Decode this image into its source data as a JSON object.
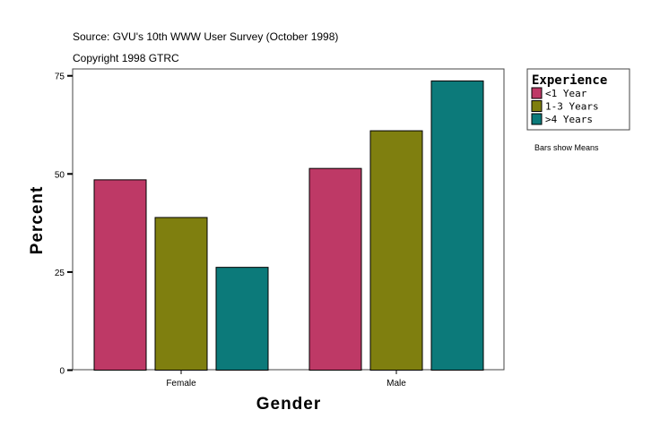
{
  "chart_data": {
    "type": "bar",
    "subtitle_lines": [
      "Source: GVU's 10th WWW User Survey (October 1998)",
      "Copyright 1998 GTRC"
    ],
    "xlabel": "Gender",
    "ylabel": "Percent",
    "categories": [
      "Female",
      "Male"
    ],
    "ylim": [
      0,
      75
    ],
    "yticks": [
      0,
      25,
      50,
      75
    ],
    "grid": false,
    "legend_title": "Experience",
    "legend_position": "right",
    "note": "Bars show Means",
    "series": [
      {
        "name": "<1 Year",
        "color": "#be3966",
        "values": [
          48.5,
          51.4
        ]
      },
      {
        "name": "1-3 Years",
        "color": "#7f7f0f",
        "values": [
          38.9,
          61.0
        ]
      },
      {
        "name": ">4 Years",
        "color": "#0c7a7a",
        "values": [
          26.2,
          73.7
        ]
      }
    ]
  }
}
